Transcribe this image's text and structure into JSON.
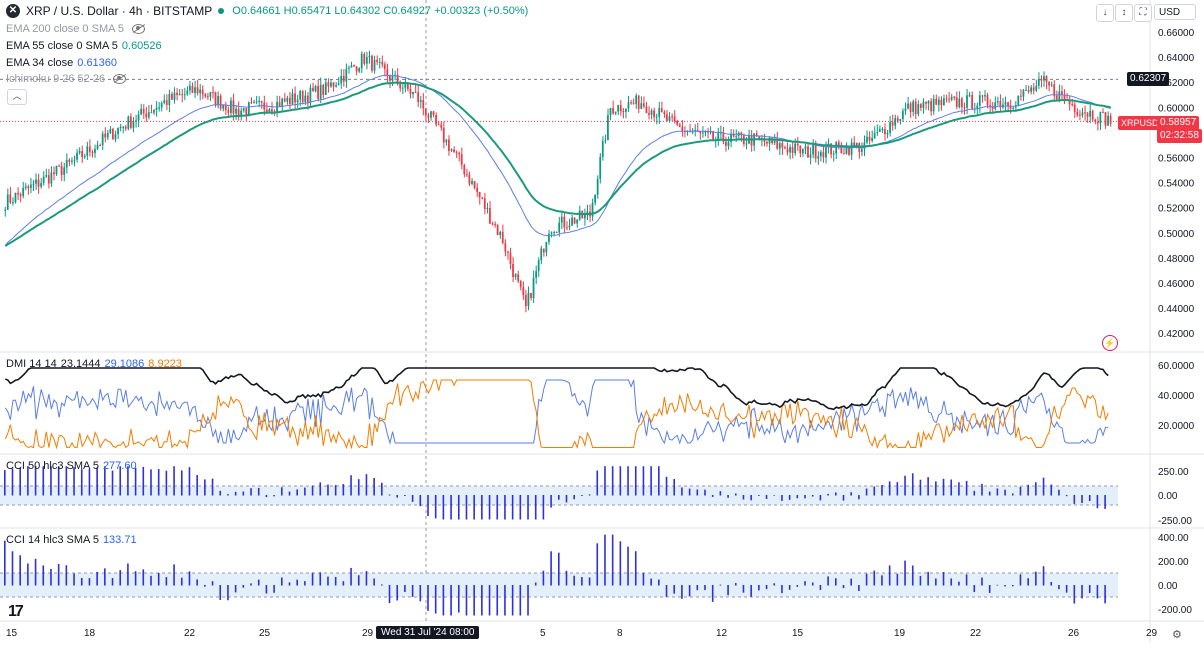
{
  "header": {
    "symbol": "XRP / U.S. Dollar · 4h · BITSTAMP",
    "ohlc": "O0.64661 H0.65471 L0.64302 C0.64927 +0.00323 (+0.50%)",
    "currency": "USD",
    "buttons": [
      "↓",
      "↕",
      "⛶"
    ]
  },
  "legends": {
    "ema200": {
      "label": "EMA 200 close 0 SMA 5"
    },
    "ema55": {
      "label": "EMA 55 close 0 SMA 5",
      "value": "0.60526"
    },
    "ema34": {
      "label": "EMA 34 close",
      "value": "0.61360"
    },
    "ichimoku": {
      "label": "Ichimoku 9 26 52 26"
    },
    "dmi": {
      "label": "DMI 14 14",
      "v1": "23.1444",
      "v2": "29.1086",
      "v3": "8.9223"
    },
    "cci50": {
      "label": "CCI 50 hlc3 SMA 5",
      "value": "277.60"
    },
    "cci14": {
      "label": "CCI 14 hlc3 SMA 5",
      "value": "133.71"
    }
  },
  "price_axis": [
    "0.66000",
    "0.64000",
    "0.62000",
    "0.60000",
    "0.58000",
    "0.56000",
    "0.54000",
    "0.52000",
    "0.50000",
    "0.48000",
    "0.46000",
    "0.44000",
    "0.42000"
  ],
  "price_tags": {
    "level": "0.62307",
    "symbol": "XRPUSD",
    "last": "0.58957",
    "countdown": "02:32:58"
  },
  "dmi_axis": [
    "60.0000",
    "40.0000",
    "20.0000"
  ],
  "cci50_axis": [
    "250.00",
    "0.00",
    "-250.00"
  ],
  "cci14_axis": [
    "400.00",
    "200.00",
    "0.00",
    "-200.00"
  ],
  "time_axis": [
    "15",
    "18",
    "22",
    "25",
    "29",
    "5",
    "8",
    "12",
    "15",
    "19",
    "22",
    "26",
    "29"
  ],
  "crosshair_time": "Wed 31 Jul '24   08:00",
  "colors": {
    "up": "#089981",
    "down": "#f23645",
    "ema34": "#5b7fe6",
    "ema55": "#1b9a7c",
    "dmi_adx": "#131722",
    "dmi_plus": "#5b7fe6",
    "dmi_minus": "#f57c00",
    "cci": "#2f2fdc"
  },
  "chart_data": {
    "type": "candlestick",
    "title": "XRP / U.S. Dollar · 4h · BITSTAMP",
    "ylim": [
      0.42,
      0.665
    ],
    "anchors": [
      [
        0,
        0.525
      ],
      [
        25,
        0.555
      ],
      [
        45,
        0.585
      ],
      [
        62,
        0.605
      ],
      [
        75,
        0.615
      ],
      [
        90,
        0.598
      ],
      [
        105,
        0.603
      ],
      [
        125,
        0.615
      ],
      [
        140,
        0.64
      ],
      [
        160,
        0.61
      ],
      [
        178,
        0.555
      ],
      [
        194,
        0.495
      ],
      [
        203,
        0.44
      ],
      [
        212,
        0.505
      ],
      [
        228,
        0.515
      ],
      [
        236,
        0.6
      ],
      [
        248,
        0.605
      ],
      [
        262,
        0.585
      ],
      [
        276,
        0.575
      ],
      [
        292,
        0.575
      ],
      [
        312,
        0.565
      ],
      [
        335,
        0.57
      ],
      [
        352,
        0.6
      ],
      [
        372,
        0.605
      ],
      [
        392,
        0.605
      ],
      [
        405,
        0.62
      ],
      [
        418,
        0.6
      ],
      [
        431,
        0.59
      ]
    ],
    "candle_count": 432
  }
}
